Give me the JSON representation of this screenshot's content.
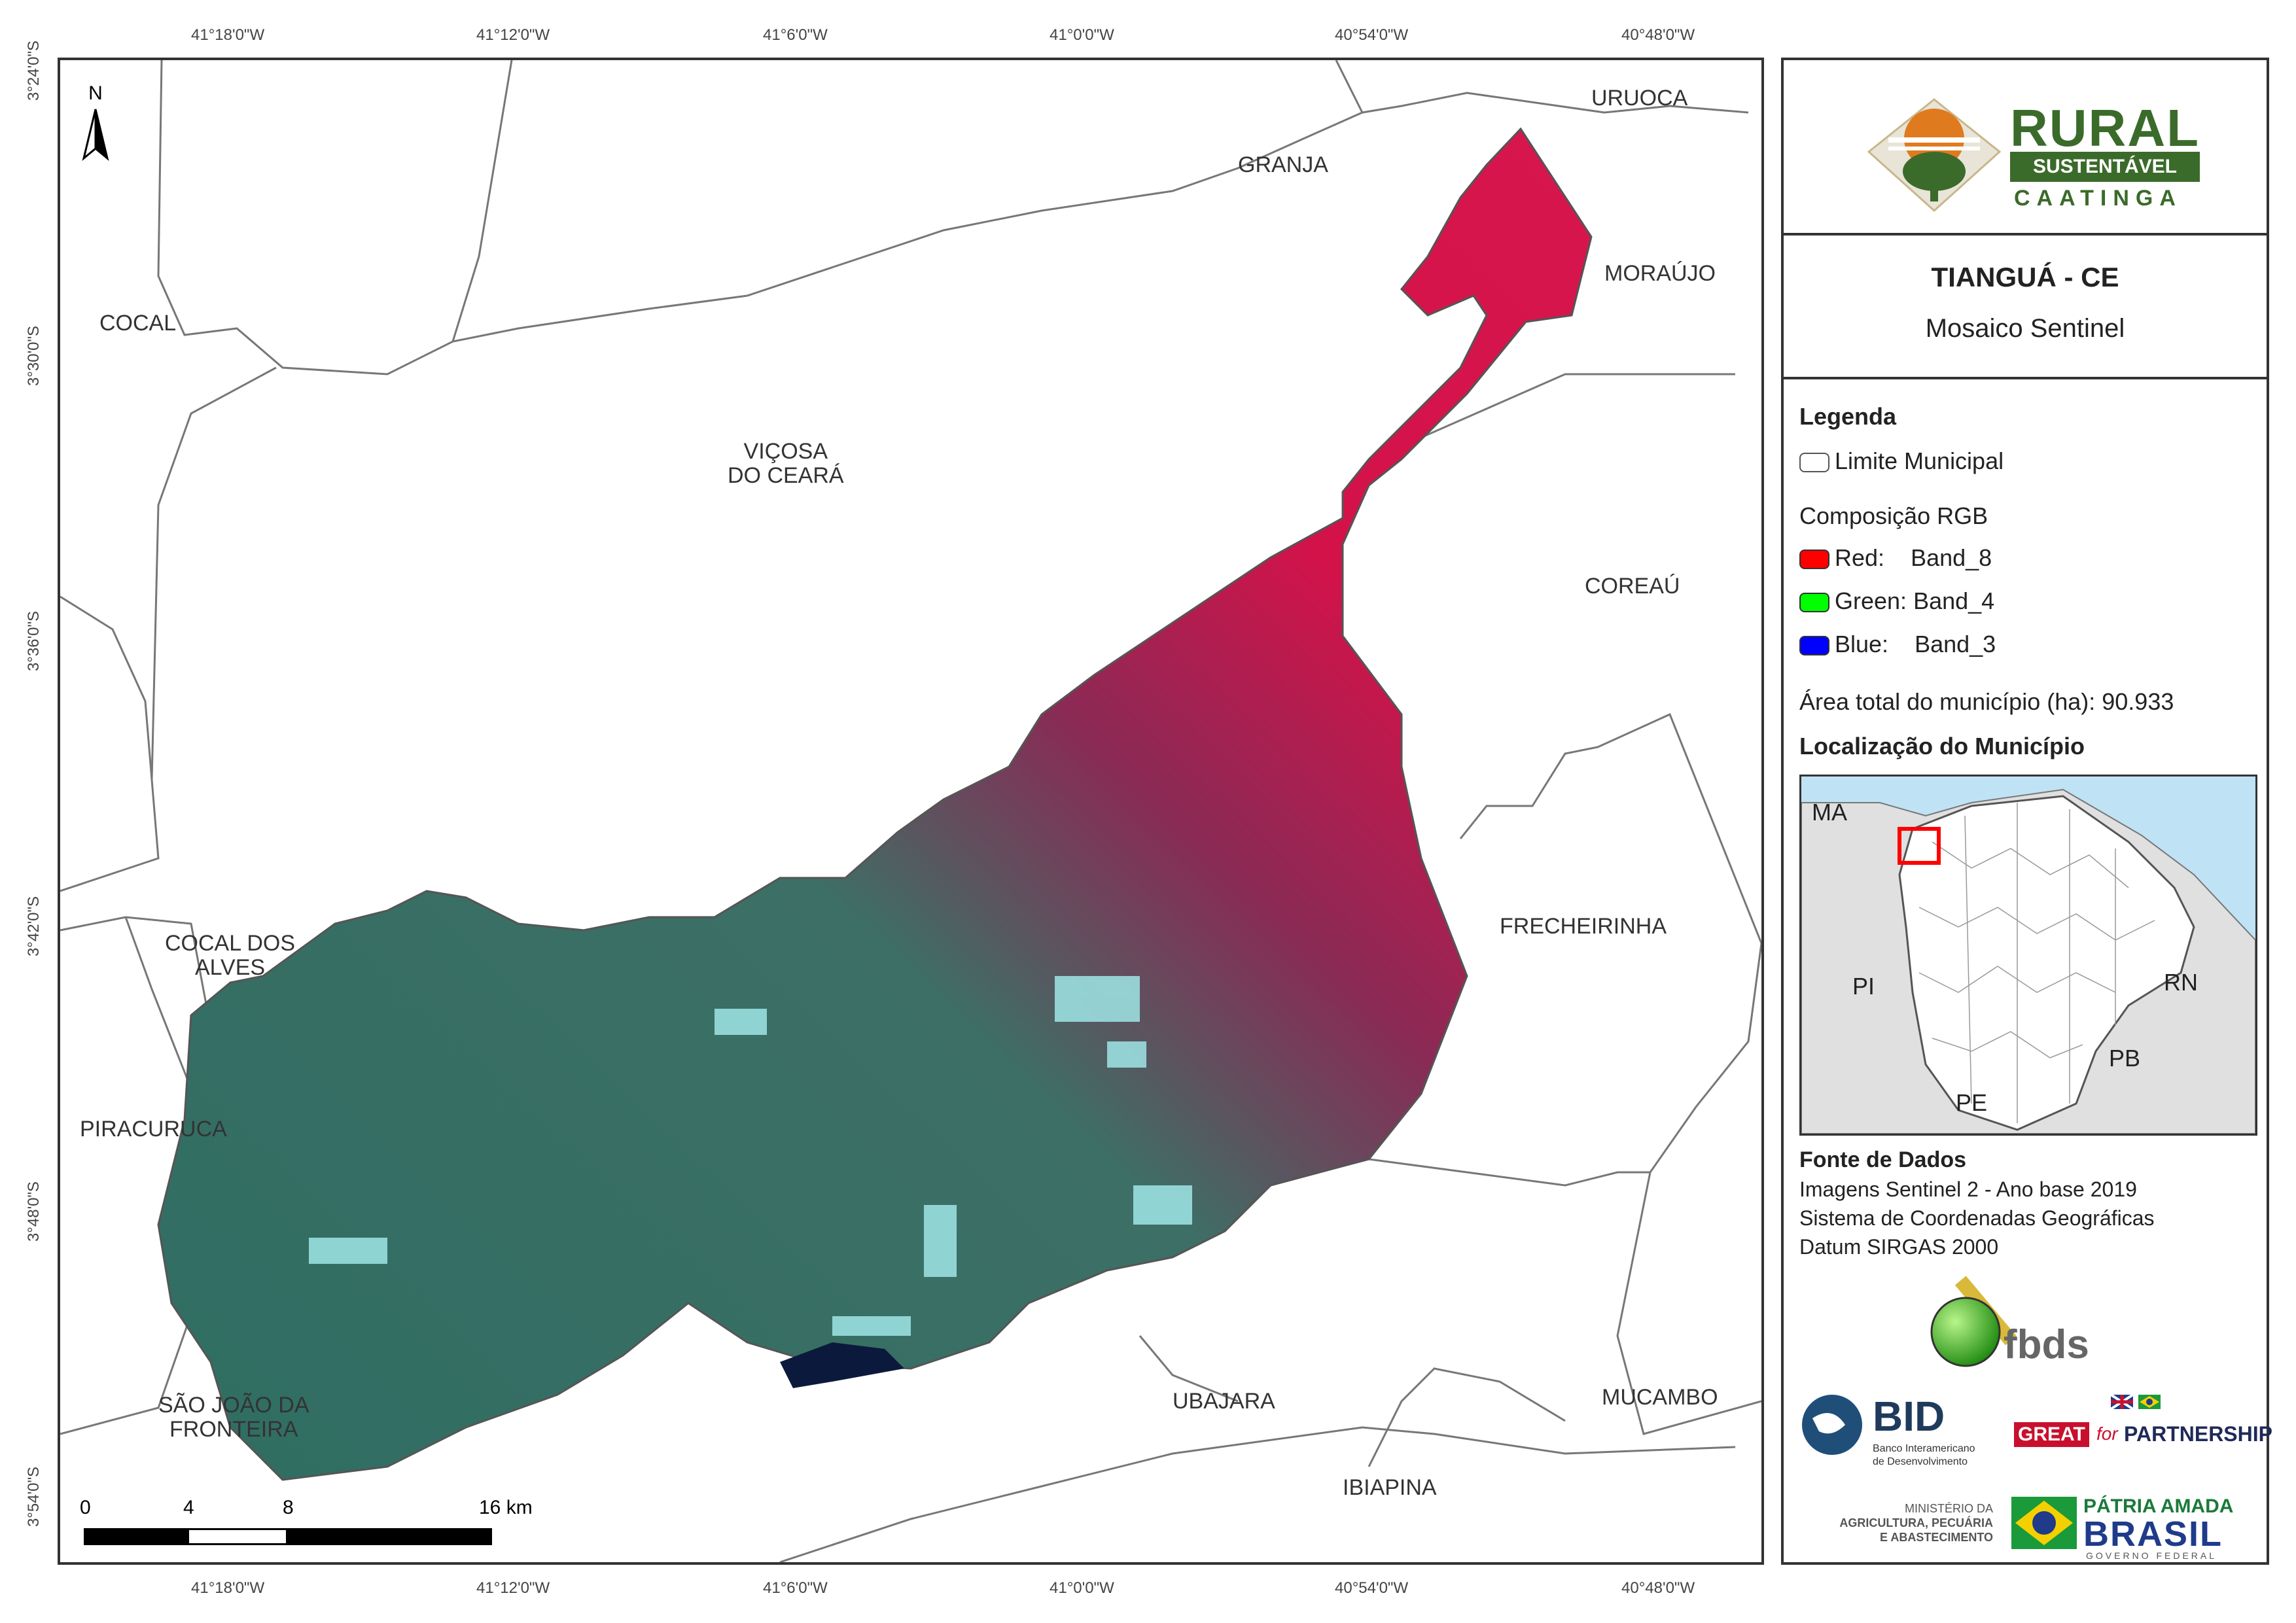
{
  "map": {
    "coords_top": [
      "41°18'0\"W",
      "41°12'0\"W",
      "41°6'0\"W",
      "41°0'0\"W",
      "40°54'0\"W",
      "40°48'0\"W"
    ],
    "coords_bottom": [
      "41°18'0\"W",
      "41°12'0\"W",
      "41°6'0\"W",
      "41°0'0\"W",
      "40°54'0\"W",
      "40°48'0\"W"
    ],
    "coords_left": [
      "3°24'0\"S",
      "3°30'0\"S",
      "3°36'0\"S",
      "3°42'0\"S",
      "3°48'0\"S",
      "3°54'0\"S"
    ],
    "north_label": "N",
    "municipalities": {
      "uruoca": "URUOCA",
      "granja": "GRANJA",
      "morajo": "MORAÚJO",
      "cocal": "COCAL",
      "vicosa_1": "VIÇOSA",
      "vicosa_2": "DO CEARÁ",
      "coreau": "COREAÚ",
      "frecheirinha": "FRECHEIRINHA",
      "cocal_alves_1": "COCAL DOS",
      "cocal_alves_2": "ALVES",
      "piracuruca": "PIRACURUCA",
      "sao_joao_1": "SÃO JOÃO DA",
      "sao_joao_2": "FRONTEIRA",
      "ubajara": "UBAJARA",
      "mucambo": "MUCAMBO",
      "ibiapina": "IBIAPINA"
    },
    "scale_bar": {
      "labels": [
        "0",
        "4",
        "8",
        "16 km"
      ]
    },
    "colors": {
      "vegetation_red": "#d4124a",
      "forest_teal": "#2f6e62",
      "bare_cyan": "#9fe6e6",
      "water": "#0b1a3c",
      "boundary": "#666666"
    }
  },
  "logo": {
    "rural": "RURAL",
    "sustentavel": "SUSTENTÁVEL",
    "caatinga": "CAATINGA",
    "colors": {
      "green": "#3b6b2a",
      "orange": "#e07a1f"
    }
  },
  "title": {
    "main": "TIANGUÁ - CE",
    "sub": "Mosaico Sentinel"
  },
  "legend": {
    "heading": "Legenda",
    "limite": "Limite Municipal",
    "rgb_heading": "Composição RGB",
    "red_label": "Red:",
    "red_band": "Band_8",
    "green_label": "Green:",
    "green_band": "Band_4",
    "blue_label": "Blue:",
    "blue_band": "Band_3",
    "area_label": "Área total do município (ha):",
    "area_value": "90.933",
    "colors": {
      "red": "#ff0000",
      "green": "#00ff00",
      "blue": "#0000ff"
    }
  },
  "location": {
    "heading": "Localização do Município",
    "states": {
      "ma": "MA",
      "pi": "PI",
      "rn": "RN",
      "pb": "PB",
      "pe": "PE"
    },
    "colors": {
      "sea": "#bfe3f5",
      "land": "#e0e0e0",
      "state": "#ffffff",
      "marker": "#ff0000"
    }
  },
  "sources": {
    "heading": "Fonte de Dados",
    "line1": "Imagens Sentinel 2 - Ano base 2019",
    "line2": "Sistema de Coordenadas Geográficas",
    "line3": "Datum SIRGAS 2000"
  },
  "partners": {
    "fbds": "fbds",
    "bid": "BID",
    "bid_sub1": "Banco Interamericano",
    "bid_sub2": "de Desenvolvimento",
    "great": "GREAT",
    "great_for": "for",
    "partnership": "PARTNERSHIP",
    "ministerio1": "MINISTÉRIO DA",
    "ministerio2": "AGRICULTURA, PECUÁRIA",
    "ministerio3": "E ABASTECIMENTO",
    "patria": "PÁTRIA AMADA",
    "brasil": "BRASIL",
    "governo": "GOVERNO FEDERAL"
  }
}
